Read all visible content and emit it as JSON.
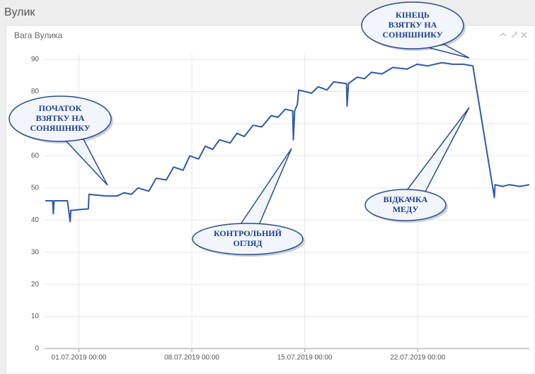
{
  "header": {
    "title": "Вулик"
  },
  "chart_data": {
    "type": "line",
    "title": "Вага Вулика",
    "x": [
      "2019-06-28 22:00",
      "2019-06-29 09:00",
      "2019-06-29 10:00",
      "2019-06-29 11:00",
      "2019-06-30 07:00",
      "2019-06-30 11:00",
      "2019-06-30 12:00",
      "2019-07-01 14:00",
      "2019-07-01 15:00",
      "2019-07-02 17:00",
      "2019-07-03 09:00",
      "2019-07-03 19:00",
      "2019-07-04 06:00",
      "2019-07-04 16:00",
      "2019-07-05 08:00",
      "2019-07-05 19:00",
      "2019-07-06 10:00",
      "2019-07-06 21:00",
      "2019-07-07 11:00",
      "2019-07-07 21:00",
      "2019-07-08 10:00",
      "2019-07-08 20:00",
      "2019-07-09 07:00",
      "2019-07-09 17:00",
      "2019-07-10 09:00",
      "2019-07-10 19:00",
      "2019-07-11 06:00",
      "2019-07-11 19:00",
      "2019-07-12 08:00",
      "2019-07-12 22:00",
      "2019-07-13 08:00",
      "2019-07-13 19:00",
      "2019-07-14 06:00",
      "2019-07-14 07:00",
      "2019-07-14 09:00",
      "2019-07-14 13:00",
      "2019-07-14 15:00",
      "2019-07-15 10:00",
      "2019-07-15 20:00",
      "2019-07-16 09:00",
      "2019-07-16 19:00",
      "2019-07-17 14:00",
      "2019-07-17 15:00",
      "2019-07-17 17:00",
      "2019-07-18 06:00",
      "2019-07-18 17:00",
      "2019-07-19 03:00",
      "2019-07-19 19:00",
      "2019-07-20 11:00",
      "2019-07-21 08:00",
      "2019-07-21 23:00",
      "2019-07-22 15:00",
      "2019-07-23 12:00",
      "2019-07-24 04:00",
      "2019-07-24 20:00",
      "2019-07-25 10:00",
      "2019-07-26 18:00",
      "2019-07-26 19:00",
      "2019-07-27 06:00",
      "2019-07-27 16:00",
      "2019-07-28 08:00",
      "2019-07-28 22:00"
    ],
    "series": [
      {
        "color": "#2e5aa8",
        "values": [
          46,
          46,
          42,
          46,
          46,
          39.5,
          43,
          43.5,
          48,
          47.5,
          47.5,
          48.5,
          48,
          50,
          49,
          53,
          52.5,
          56.5,
          55.5,
          60,
          59,
          63,
          62,
          65,
          64,
          67,
          66,
          69.5,
          69,
          72.5,
          72,
          74.5,
          74,
          65,
          74,
          76,
          80.5,
          79.5,
          81.5,
          80.5,
          83,
          82.5,
          75.5,
          82.5,
          84.5,
          84,
          86,
          85.5,
          87.5,
          87,
          88.5,
          88,
          89,
          88.5,
          88.5,
          88,
          47,
          51,
          50.5,
          51,
          50.5,
          51
        ]
      }
    ],
    "xlim": [
      "2019-06-28 21:00",
      "2019-07-28 22:00"
    ],
    "xticks": [
      {
        "value": "2019-07-01 00:00",
        "label": "01.07.2019 00:00"
      },
      {
        "value": "2019-07-08 00:00",
        "label": "08.07.2019 00:00"
      },
      {
        "value": "2019-07-15 00:00",
        "label": "15.07.2019 00:00"
      },
      {
        "value": "2019-07-22 00:00",
        "label": "22.07.2019 00:00"
      }
    ],
    "ylim": [
      0,
      92
    ],
    "yticks": [
      0,
      10,
      20,
      30,
      40,
      50,
      60,
      70,
      80,
      90
    ],
    "grid": true,
    "annotations": [
      {
        "lines": [
          "ПОЧАТОК",
          "ВЗЯТКУ НА",
          "СОНЯШНИКУ"
        ]
      },
      {
        "lines": [
          "КОНТРОЛЬНИЙ",
          "ОГЛЯД"
        ]
      },
      {
        "lines": [
          "КІНЕЦЬ",
          "ВЗЯТКУ НА",
          "СОНЯШНИКУ"
        ]
      },
      {
        "lines": [
          "ВІДКАЧКА",
          "МЕДУ"
        ]
      }
    ]
  }
}
